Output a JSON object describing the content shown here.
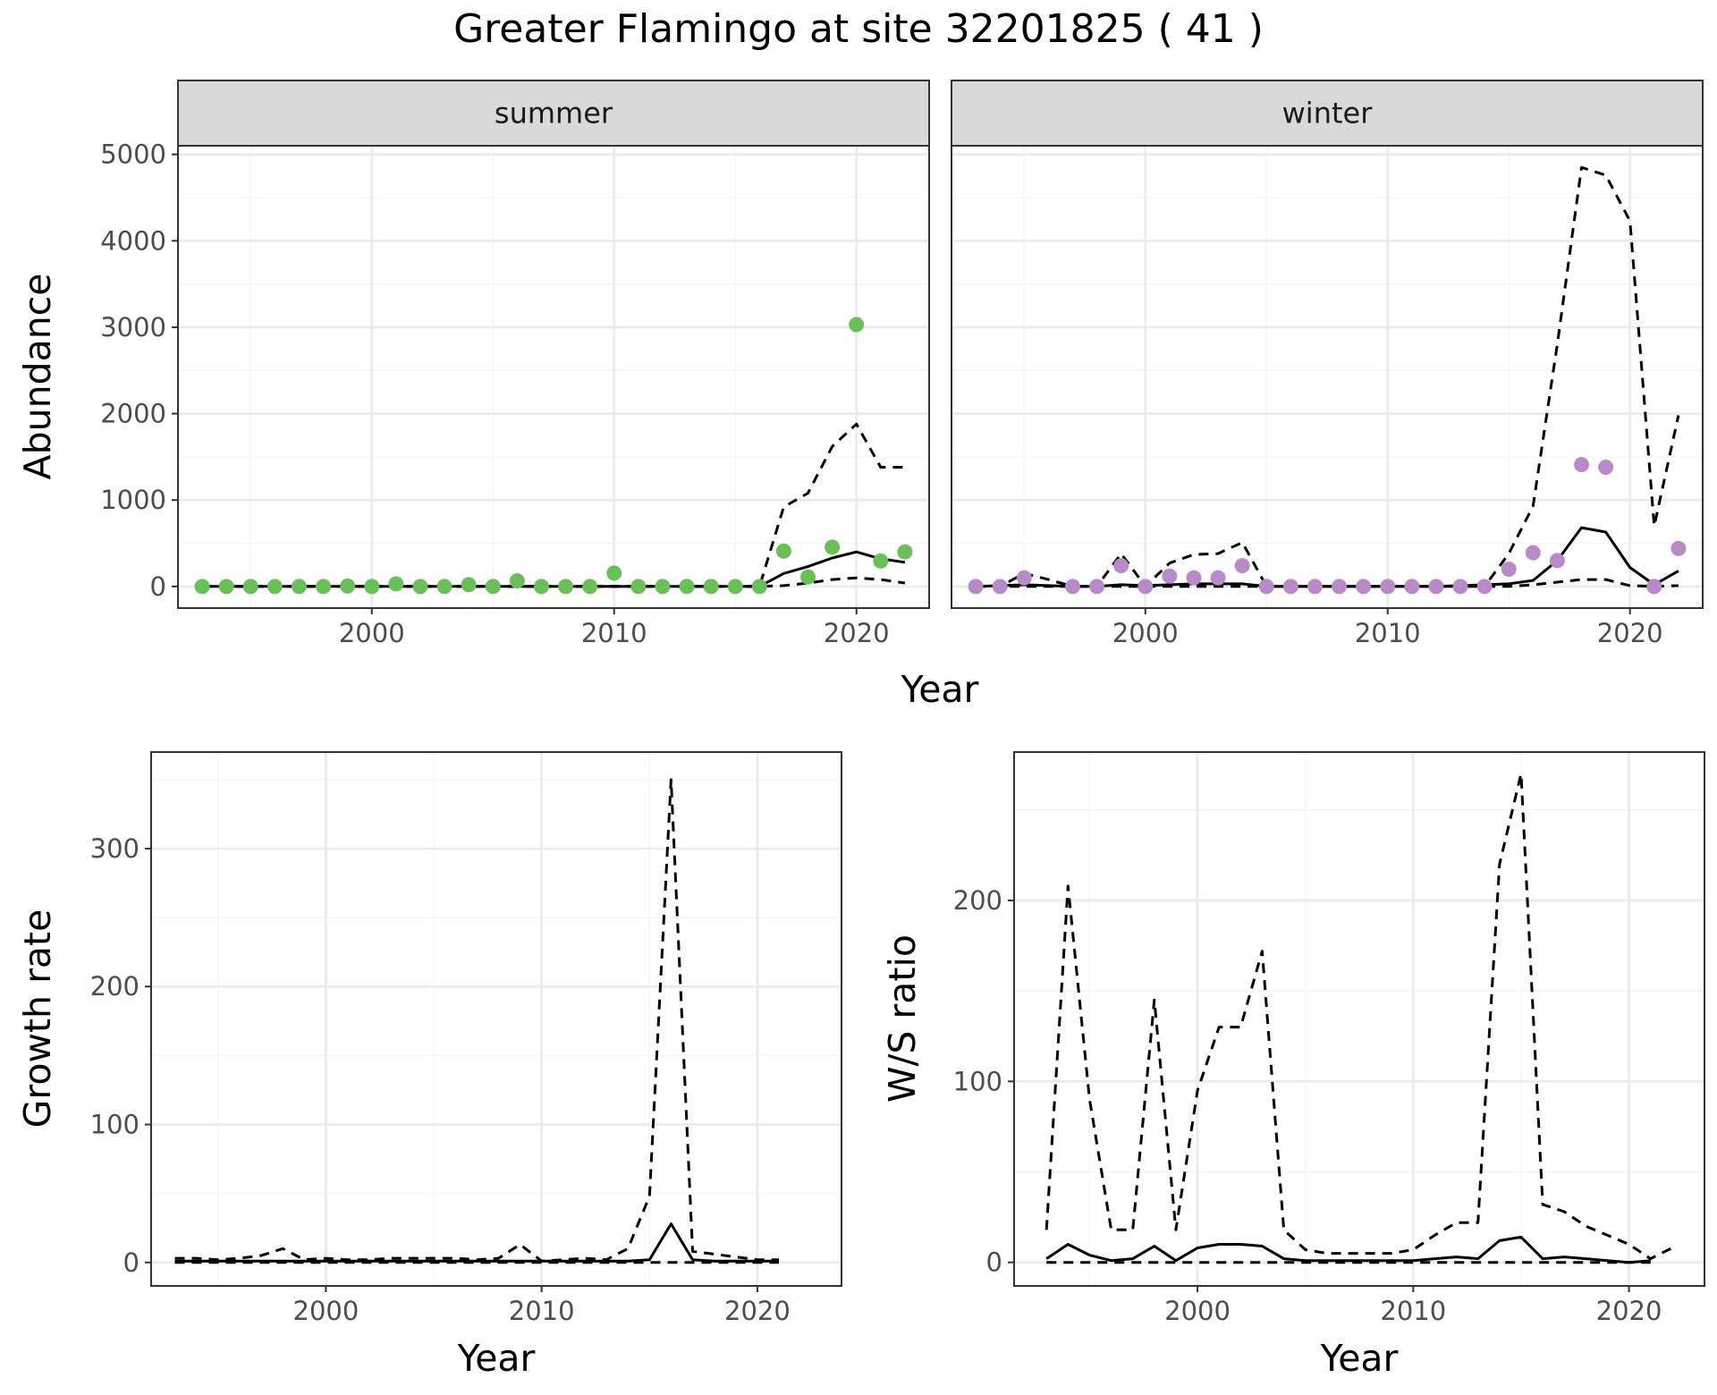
{
  "title": "Greater Flamingo at site 32201825 ( 41 )",
  "colors": {
    "summer_points": "#6BBF59",
    "winter_points": "#B88BC8",
    "line": "#000000",
    "grid_major": "#EBEBEB",
    "grid_minor": "#F5F5F5",
    "strip_fill": "#D9D9D9"
  },
  "chart_data": [
    {
      "id": "abundance",
      "type": "scatter",
      "facets": [
        "summer",
        "winter"
      ],
      "xlabel": "Year",
      "ylabel": "Abundance",
      "xlim": [
        1992,
        2023
      ],
      "ylim": [
        -250,
        5100
      ],
      "x_ticks": [
        2000,
        2010,
        2020
      ],
      "x_tick_labels": [
        "2000",
        "2010",
        "2020"
      ],
      "y_ticks": [
        0,
        1000,
        2000,
        3000,
        4000,
        5000
      ],
      "y_tick_labels": [
        "0",
        "1000",
        "2000",
        "3000",
        "4000",
        "5000"
      ],
      "panels": [
        {
          "facet": "summer",
          "points": {
            "x": [
              1993,
              1994,
              1995,
              1996,
              1997,
              1998,
              1999,
              2000,
              2001,
              2002,
              2003,
              2004,
              2005,
              2006,
              2007,
              2008,
              2009,
              2010,
              2011,
              2012,
              2013,
              2014,
              2015,
              2016,
              2017,
              2018,
              2019,
              2020,
              2021,
              2022
            ],
            "y": [
              0,
              0,
              0,
              0,
              0,
              0,
              5,
              0,
              30,
              0,
              0,
              20,
              0,
              65,
              0,
              0,
              0,
              155,
              0,
              0,
              0,
              0,
              0,
              0,
              410,
              110,
              455,
              3030,
              295,
              400
            ]
          },
          "estimate": {
            "x": [
              1993,
              1994,
              1995,
              1996,
              1997,
              1998,
              1999,
              2000,
              2001,
              2002,
              2003,
              2004,
              2005,
              2006,
              2007,
              2008,
              2009,
              2010,
              2011,
              2012,
              2013,
              2014,
              2015,
              2016,
              2017,
              2018,
              2019,
              2020,
              2021,
              2022
            ],
            "y": [
              0,
              0,
              0,
              0,
              0,
              0,
              0,
              0,
              0,
              0,
              0,
              0,
              0,
              0,
              0,
              0,
              0,
              0,
              0,
              0,
              0,
              0,
              0,
              0,
              150,
              230,
              330,
              400,
              320,
              280
            ]
          },
          "upper": {
            "x": [
              1993,
              1994,
              1995,
              1996,
              1997,
              1998,
              1999,
              2000,
              2001,
              2002,
              2003,
              2004,
              2005,
              2006,
              2007,
              2008,
              2009,
              2010,
              2011,
              2012,
              2013,
              2014,
              2015,
              2016,
              2017,
              2018,
              2019,
              2020,
              2021,
              2022
            ],
            "y": [
              0,
              0,
              0,
              0,
              0,
              0,
              0,
              0,
              0,
              0,
              0,
              0,
              0,
              0,
              0,
              0,
              0,
              0,
              0,
              0,
              0,
              0,
              0,
              0,
              920,
              1080,
              1620,
              1880,
              1380,
              1380
            ]
          },
          "lower": {
            "x": [
              1993,
              2016,
              2017,
              2018,
              2019,
              2020,
              2021,
              2022
            ],
            "y": [
              0,
              0,
              10,
              40,
              80,
              100,
              80,
              40
            ]
          }
        },
        {
          "facet": "winter",
          "points": {
            "x": [
              1993,
              1994,
              1995,
              1997,
              1998,
              1999,
              2000,
              2001,
              2002,
              2003,
              2004,
              2005,
              2006,
              2007,
              2008,
              2009,
              2010,
              2011,
              2012,
              2013,
              2014,
              2015,
              2016,
              2017,
              2018,
              2019,
              2021,
              2022
            ],
            "y": [
              0,
              0,
              100,
              0,
              0,
              240,
              0,
              120,
              100,
              100,
              240,
              0,
              0,
              0,
              0,
              0,
              0,
              0,
              0,
              0,
              0,
              200,
              390,
              300,
              1410,
              1380,
              0,
              440
            ]
          },
          "estimate": {
            "x": [
              1993,
              1995,
              1996,
              1997,
              1998,
              1999,
              2000,
              2001,
              2002,
              2003,
              2004,
              2005,
              2006,
              2007,
              2008,
              2009,
              2010,
              2011,
              2012,
              2013,
              2014,
              2015,
              2016,
              2017,
              2018,
              2019,
              2020,
              2021,
              2022
            ],
            "y": [
              0,
              20,
              10,
              0,
              0,
              20,
              10,
              20,
              30,
              30,
              30,
              0,
              0,
              0,
              0,
              0,
              0,
              0,
              0,
              10,
              20,
              30,
              70,
              300,
              680,
              630,
              220,
              20,
              180
            ]
          },
          "upper": {
            "x": [
              1993,
              1994,
              1995,
              1996,
              1997,
              1998,
              1999,
              2000,
              2001,
              2002,
              2003,
              2004,
              2005,
              2006,
              2007,
              2008,
              2009,
              2010,
              2011,
              2012,
              2013,
              2014,
              2015,
              2016,
              2017,
              2018,
              2019,
              2020,
              2021,
              2022
            ],
            "y": [
              0,
              0,
              150,
              80,
              0,
              0,
              380,
              0,
              270,
              370,
              380,
              510,
              0,
              0,
              0,
              0,
              0,
              0,
              0,
              0,
              0,
              0,
              380,
              930,
              2800,
              4850,
              4760,
              4230,
              700,
              1980
            ]
          },
          "lower": {
            "x": [
              1993,
              2015,
              2016,
              2017,
              2018,
              2019,
              2020,
              2021,
              2022
            ],
            "y": [
              0,
              0,
              20,
              50,
              80,
              80,
              10,
              0,
              10
            ]
          }
        }
      ]
    },
    {
      "id": "growth",
      "type": "line",
      "xlabel": "Year",
      "ylabel": "Growth rate",
      "xlim": [
        1991.9,
        2023.9
      ],
      "ylim": [
        -17,
        370
      ],
      "x_ticks": [
        2000,
        2010,
        2020
      ],
      "x_tick_labels": [
        "2000",
        "2010",
        "2020"
      ],
      "y_ticks": [
        0,
        100,
        200,
        300
      ],
      "y_tick_labels": [
        "0",
        "100",
        "200",
        "300"
      ],
      "estimate": {
        "x": [
          1993,
          1994,
          1995,
          1996,
          1997,
          1998,
          1999,
          2000,
          2001,
          2002,
          2003,
          2004,
          2005,
          2006,
          2007,
          2008,
          2009,
          2010,
          2011,
          2012,
          2013,
          2014,
          2015,
          2016,
          2017,
          2018,
          2019,
          2020,
          2021
        ],
        "y": [
          1,
          1,
          1,
          1,
          1,
          1,
          1,
          1,
          1,
          1,
          1,
          1,
          1,
          1,
          1,
          1,
          1,
          1,
          1,
          1,
          1,
          1,
          2,
          28,
          2,
          1,
          1,
          1,
          1
        ]
      },
      "upper": {
        "x": [
          1993,
          1994,
          1995,
          1996,
          1997,
          1998,
          1999,
          2000,
          2001,
          2002,
          2003,
          2004,
          2005,
          2006,
          2007,
          2008,
          2009,
          2010,
          2011,
          2012,
          2013,
          2014,
          2015,
          2016,
          2017,
          2018,
          2019,
          2020,
          2021
        ],
        "y": [
          3,
          3,
          2,
          3,
          5,
          10,
          2,
          3,
          2,
          2,
          3,
          3,
          3,
          3,
          2,
          3,
          13,
          1,
          2,
          3,
          2,
          10,
          48,
          350,
          8,
          6,
          4,
          2,
          2
        ]
      },
      "lower": {
        "x": [
          1993,
          2021
        ],
        "y": [
          0,
          0
        ]
      }
    },
    {
      "id": "ws_ratio",
      "type": "line",
      "xlabel": "Year",
      "ylabel": "W/S ratio",
      "xlim": [
        1991.5,
        2023.5
      ],
      "ylim": [
        -13,
        282
      ],
      "x_ticks": [
        2000,
        2010,
        2020
      ],
      "x_tick_labels": [
        "2000",
        "2010",
        "2020"
      ],
      "y_ticks": [
        0,
        100,
        200
      ],
      "y_tick_labels": [
        "0",
        "100",
        "200"
      ],
      "estimate": {
        "x": [
          1993,
          1994,
          1995,
          1996,
          1997,
          1998,
          1999,
          2000,
          2001,
          2002,
          2003,
          2004,
          2005,
          2006,
          2007,
          2008,
          2009,
          2010,
          2011,
          2012,
          2013,
          2014,
          2015,
          2016,
          2017,
          2018,
          2019,
          2020,
          2021
        ],
        "y": [
          2,
          10,
          4,
          1,
          2,
          9,
          1,
          8,
          10,
          10,
          9,
          2,
          1,
          1,
          1,
          1,
          1,
          1,
          2,
          3,
          2,
          12,
          14,
          2,
          3,
          2,
          1,
          0,
          1
        ]
      },
      "upper": {
        "x": [
          1993,
          1994,
          1995,
          1996,
          1997,
          1998,
          1999,
          2000,
          2001,
          2002,
          2003,
          2004,
          2005,
          2006,
          2007,
          2008,
          2009,
          2010,
          2011,
          2012,
          2013,
          2014,
          2015,
          2016,
          2017,
          2018,
          2019,
          2020,
          2021,
          2022
        ],
        "y": [
          18,
          208,
          90,
          18,
          18,
          145,
          18,
          95,
          130,
          130,
          172,
          18,
          7,
          5,
          5,
          5,
          5,
          7,
          15,
          22,
          22,
          220,
          270,
          32,
          28,
          20,
          15,
          10,
          2,
          8
        ]
      },
      "lower": {
        "x": [
          1993,
          2021
        ],
        "y": [
          0,
          0
        ]
      }
    }
  ]
}
